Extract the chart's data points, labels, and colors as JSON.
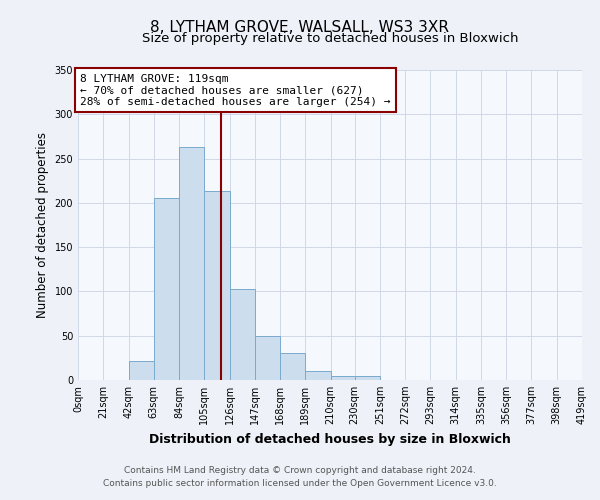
{
  "title": "8, LYTHAM GROVE, WALSALL, WS3 3XR",
  "subtitle": "Size of property relative to detached houses in Bloxwich",
  "xlabel": "Distribution of detached houses by size in Bloxwich",
  "ylabel": "Number of detached properties",
  "bin_edges": [
    0,
    21,
    42,
    63,
    84,
    105,
    126,
    147,
    168,
    189,
    210,
    230,
    251,
    272,
    293,
    314,
    335,
    356,
    377,
    398,
    419
  ],
  "bar_heights": [
    0,
    0,
    22,
    205,
    263,
    213,
    103,
    50,
    30,
    10,
    4,
    4,
    0,
    0,
    0,
    0,
    0,
    0,
    0,
    0
  ],
  "bar_color": "#ccdded",
  "bar_edge_color": "#7aaacf",
  "red_line_x": 119,
  "ylim": [
    0,
    350
  ],
  "yticks": [
    0,
    50,
    100,
    150,
    200,
    250,
    300,
    350
  ],
  "xtick_labels": [
    "0sqm",
    "21sqm",
    "42sqm",
    "63sqm",
    "84sqm",
    "105sqm",
    "126sqm",
    "147sqm",
    "168sqm",
    "189sqm",
    "210sqm",
    "230sqm",
    "251sqm",
    "272sqm",
    "293sqm",
    "314sqm",
    "335sqm",
    "356sqm",
    "377sqm",
    "398sqm",
    "419sqm"
  ],
  "annotation_line1": "8 LYTHAM GROVE: 119sqm",
  "annotation_line2": "← 70% of detached houses are smaller (627)",
  "annotation_line3": "28% of semi-detached houses are larger (254) →",
  "footer_line1": "Contains HM Land Registry data © Crown copyright and database right 2024.",
  "footer_line2": "Contains public sector information licensed under the Open Government Licence v3.0.",
  "background_color": "#eef2f8",
  "plot_bg_color": "#f5f8fd",
  "grid_color": "#d0d8e8",
  "title_fontsize": 11,
  "subtitle_fontsize": 9.5,
  "tick_fontsize": 7,
  "ylabel_fontsize": 8.5,
  "xlabel_fontsize": 9,
  "annotation_fontsize": 8,
  "footer_fontsize": 6.5
}
